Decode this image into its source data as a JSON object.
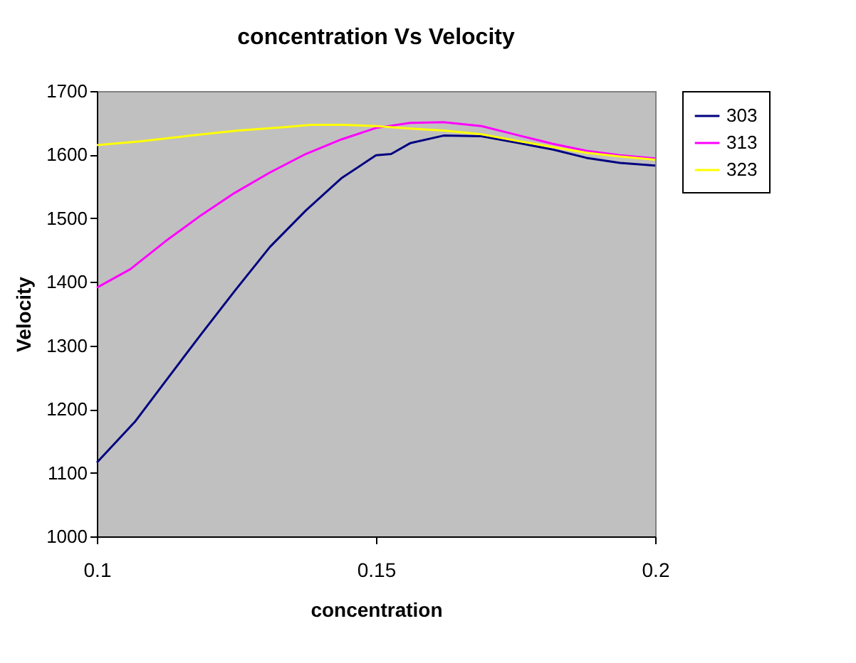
{
  "chart_data": {
    "type": "line",
    "title": "concentration Vs Velocity",
    "xlabel": "concentration",
    "ylabel": "Velocity",
    "xlim": [
      0.1,
      0.2
    ],
    "xticks": [
      0.1,
      0.15,
      0.2
    ],
    "ylim": [
      1000,
      1700
    ],
    "yticks": [
      1000,
      1100,
      1200,
      1300,
      1400,
      1500,
      1600,
      1700
    ],
    "grid": false,
    "legend": "right",
    "marker": "none",
    "line_style": "solid",
    "series": [
      {
        "name": "303",
        "color": "#000080",
        "x": [
          0.1,
          0.1068,
          0.1123,
          0.1187,
          0.1247,
          0.131,
          0.1374,
          0.1438,
          0.15,
          0.1527,
          0.1561,
          0.1621,
          0.1689,
          0.1757,
          0.1817,
          0.1877,
          0.1937,
          0.2
        ],
        "values": [
          1116,
          1180,
          1244,
          1318,
          1386,
          1455,
          1512,
          1563,
          1599,
          1601,
          1618,
          1630,
          1629,
          1618,
          1608,
          1595,
          1587,
          1583
        ]
      },
      {
        "name": "313",
        "color": "#ff00ff",
        "x": [
          0.1,
          0.106,
          0.1123,
          0.1187,
          0.1247,
          0.131,
          0.1374,
          0.1438,
          0.15,
          0.1561,
          0.1621,
          0.1689,
          0.1757,
          0.1817,
          0.1877,
          0.1937,
          0.2
        ],
        "values": [
          1391,
          1420,
          1464,
          1505,
          1540,
          1572,
          1601,
          1624,
          1642,
          1650,
          1651,
          1645,
          1630,
          1617,
          1606,
          1599,
          1594
        ]
      },
      {
        "name": "323",
        "color": "#ffff00",
        "x": [
          0.1,
          0.1077,
          0.1168,
          0.1253,
          0.1332,
          0.1383,
          0.1442,
          0.15,
          0.1561,
          0.1621,
          0.1689,
          0.1757,
          0.1817,
          0.1877,
          0.1937,
          0.2
        ],
        "values": [
          1615,
          1621,
          1630,
          1638,
          1643,
          1647,
          1647,
          1645,
          1641,
          1638,
          1632,
          1621,
          1612,
          1603,
          1597,
          1592
        ]
      }
    ]
  }
}
